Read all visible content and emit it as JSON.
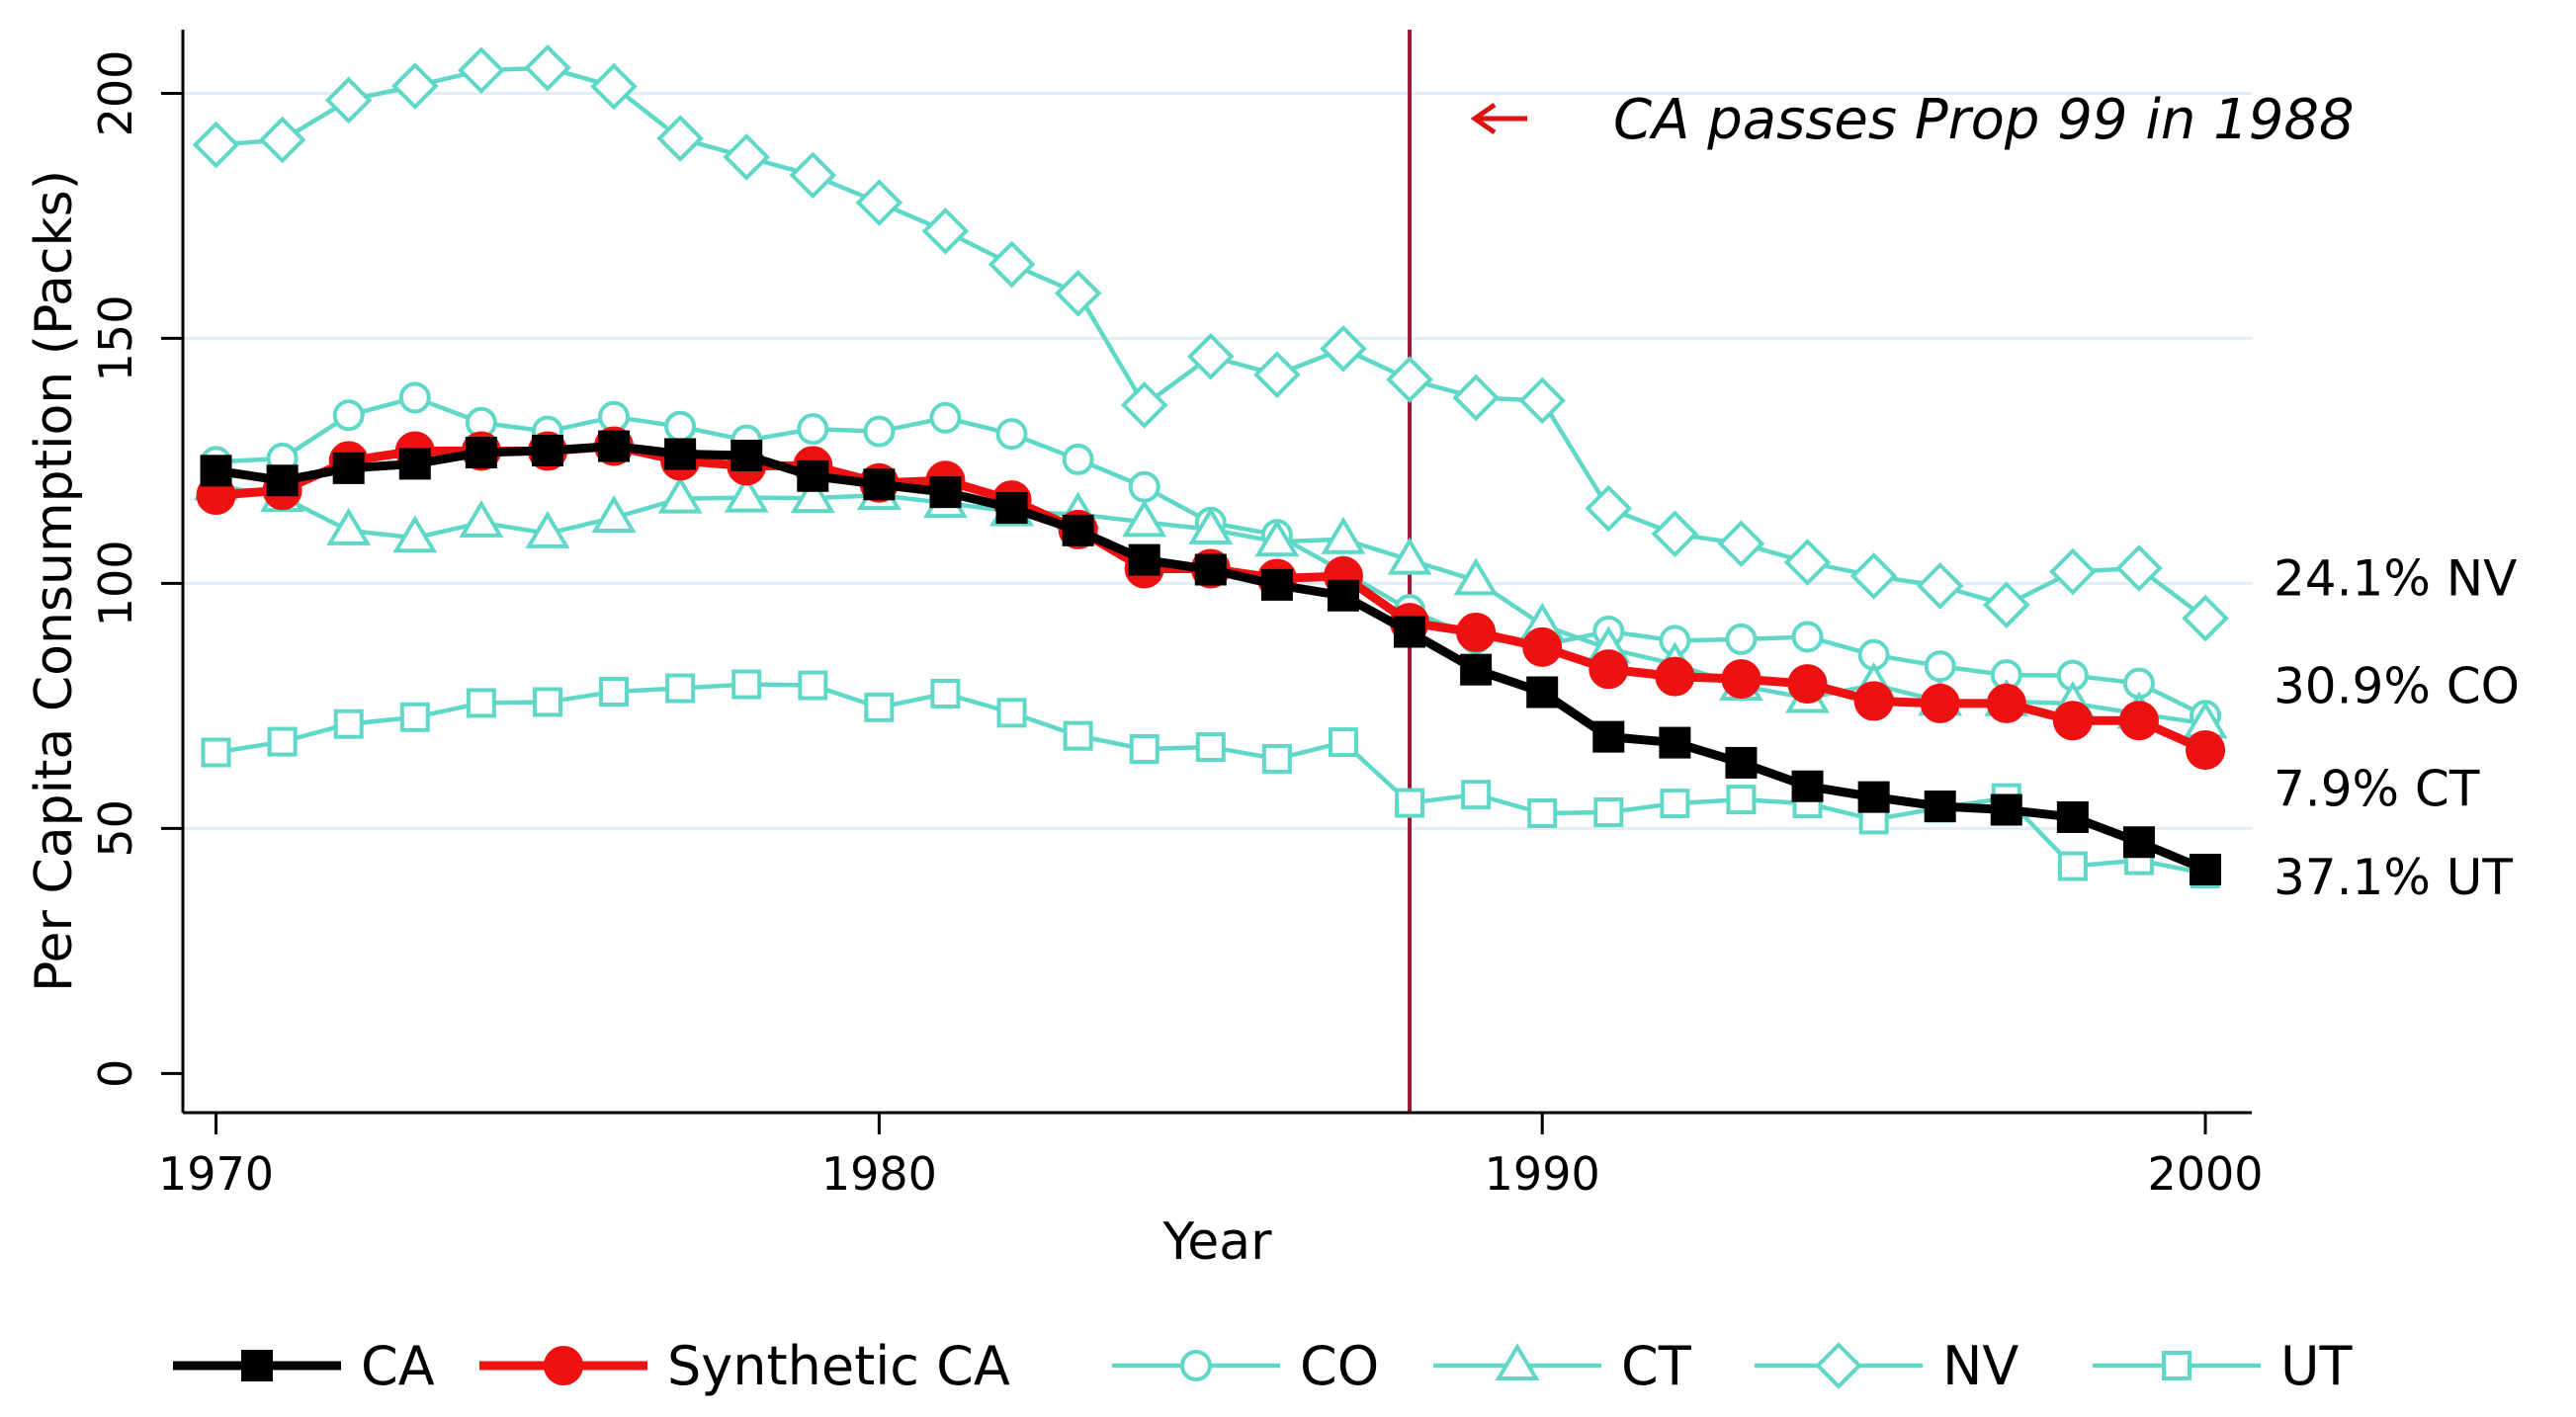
{
  "chart_data": {
    "type": "line",
    "title": "",
    "xlabel": "Year",
    "ylabel": "Per Capita Consumption (Packs)",
    "xlim": [
      1969.5,
      2000.7
    ],
    "ylim": [
      -8,
      213
    ],
    "xticks": [
      1970,
      1980,
      1990,
      2000
    ],
    "yticks": [
      0,
      50,
      100,
      150,
      200
    ],
    "grid": true,
    "legend_position": "bottom",
    "x": [
      1970,
      1971,
      1972,
      1973,
      1974,
      1975,
      1976,
      1977,
      1978,
      1979,
      1980,
      1981,
      1982,
      1983,
      1984,
      1985,
      1986,
      1987,
      1988,
      1989,
      1990,
      1991,
      1992,
      1993,
      1994,
      1995,
      1996,
      1997,
      1998,
      1999,
      2000
    ],
    "series": [
      {
        "name": "CO",
        "color": "#5fd8c8",
        "marker": "circle",
        "values": [
          124.8,
          125.5,
          134.3,
          137.9,
          132.8,
          131.0,
          134.0,
          132.0,
          129.2,
          131.5,
          131.0,
          133.8,
          130.5,
          125.3,
          119.7,
          112.4,
          109.9,
          102.4,
          94.6,
          88.8,
          87.4,
          90.2,
          88.3,
          88.6,
          89.1,
          85.4,
          83.1,
          81.3,
          81.2,
          79.6,
          73.0
        ]
      },
      {
        "name": "CT",
        "color": "#5fd8c8",
        "marker": "triangle",
        "values": [
          120.0,
          117.6,
          110.8,
          109.3,
          112.4,
          110.2,
          113.4,
          117.3,
          117.5,
          117.4,
          118.0,
          116.4,
          114.7,
          114.1,
          112.5,
          111.0,
          108.5,
          109.0,
          104.8,
          100.6,
          91.5,
          86.7,
          83.5,
          79.1,
          76.6,
          79.3,
          76.0,
          75.9,
          75.5,
          73.4,
          71.4
        ]
      },
      {
        "name": "NV",
        "color": "#5fd8c8",
        "marker": "diamond",
        "values": [
          189.5,
          190.5,
          198.6,
          201.5,
          204.7,
          205.2,
          201.4,
          190.8,
          187.0,
          183.3,
          177.7,
          171.9,
          165.1,
          159.2,
          136.4,
          146.3,
          142.6,
          147.9,
          141.6,
          137.9,
          137.3,
          115.3,
          110.1,
          108.1,
          104.3,
          101.5,
          99.5,
          95.6,
          102.4,
          103.1,
          92.9
        ]
      },
      {
        "name": "UT",
        "color": "#5fd8c8",
        "marker": "square",
        "values": [
          65.5,
          67.7,
          71.3,
          72.7,
          75.6,
          75.8,
          77.9,
          78.6,
          79.4,
          79.2,
          74.7,
          77.5,
          73.6,
          68.9,
          66.2,
          66.6,
          64.2,
          67.6,
          55.2,
          56.9,
          53.1,
          53.3,
          55.1,
          55.9,
          55.1,
          51.8,
          54.2,
          56.2,
          42.3,
          43.5,
          40.8
        ]
      },
      {
        "name": "Synthetic CA",
        "color": "#ee1111",
        "marker": "circle-filled",
        "values": [
          118.0,
          119.0,
          125.0,
          127.0,
          127.0,
          127.0,
          128.0,
          125.0,
          124.0,
          124.0,
          120.5,
          121.0,
          117.0,
          111.0,
          103.0,
          103.0,
          101.0,
          101.5,
          92.0,
          90.0,
          87.0,
          82.5,
          81.0,
          80.5,
          79.5,
          76.0,
          75.5,
          75.5,
          72.0,
          72.0,
          66.0
        ]
      },
      {
        "name": "CA",
        "color": "#000000",
        "marker": "square-filled",
        "values": [
          123.0,
          121.0,
          123.5,
          124.4,
          126.7,
          127.1,
          128.0,
          126.4,
          126.1,
          121.9,
          120.2,
          118.6,
          115.4,
          110.8,
          104.8,
          102.8,
          99.7,
          97.5,
          90.1,
          82.4,
          77.8,
          68.7,
          67.5,
          63.4,
          58.6,
          56.4,
          54.5,
          53.8,
          52.3,
          47.2,
          41.6
        ]
      }
    ],
    "legend_order": [
      "CA",
      "Synthetic CA",
      "CO",
      "CT",
      "NV",
      "UT"
    ],
    "reference_line": {
      "x": 1988,
      "color": "#a01838"
    },
    "annotation": {
      "text": "CA passes Prop 99 in 1988",
      "arrow_color": "#dd1111"
    },
    "weight_labels": [
      {
        "text": "24.1% NV",
        "y": 101
      },
      {
        "text": "30.9% CO",
        "y": 79
      },
      {
        "text": "7.9% CT",
        "y": 58
      },
      {
        "text": "37.1% UT",
        "y": 40
      }
    ]
  }
}
